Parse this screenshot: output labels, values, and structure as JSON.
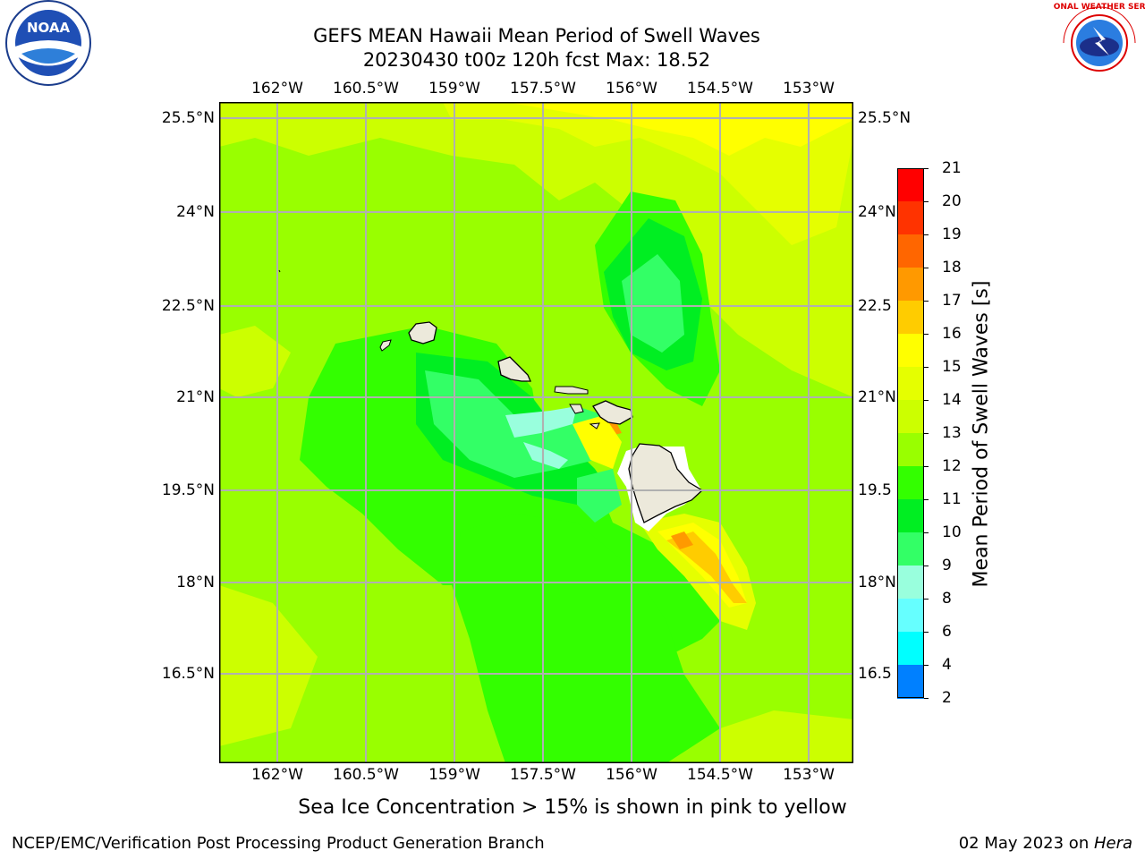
{
  "header": {
    "title_line1": "GEFS MEAN Hawaii Mean Period of Swell Waves",
    "title_line2": "20230430 t00z 120h fcst   Max: 18.52"
  },
  "logos": {
    "noaa_text": "NOAA",
    "nws_text": "NATIONAL WEATHER SERVICE"
  },
  "map": {
    "lon_ticks": [
      "162°W",
      "160.5°W",
      "159°W",
      "157.5°W",
      "156°W",
      "154.5°W",
      "153°W"
    ],
    "lat_ticks": [
      "25.5°N",
      "24°N",
      "22.5°N",
      "21°N",
      "19.5°N",
      "18°N",
      "16.5°N"
    ],
    "lat_ticks_right": [
      "25.5°N",
      "24°N",
      "22.5",
      "21°N",
      "19.5",
      "18°N",
      "16.5"
    ],
    "background_color": "#99ff00",
    "grid_color": "#b0b0b0"
  },
  "colorbar": {
    "title": "Mean Period of Swell Waves [s]",
    "labels": [
      "21",
      "20",
      "19",
      "18",
      "17",
      "16",
      "15",
      "14",
      "13",
      "12",
      "11",
      "10",
      "9",
      "8",
      "6",
      "4",
      "2"
    ],
    "colors": [
      "#ff0000",
      "#ff3300",
      "#ff6600",
      "#ff9900",
      "#ffcc00",
      "#ffff00",
      "#e5ff00",
      "#ccff00",
      "#99ff00",
      "#33ff00",
      "#00ee22",
      "#33ff66",
      "#99ffdd",
      "#66ffff",
      "#00ffff",
      "#0080ff",
      "#0000ff"
    ]
  },
  "caption": "Sea Ice Concentration > 15% is shown in pink to yellow",
  "footer": {
    "left": "NCEP/EMC/Verification Post Processing Product Generation Branch",
    "right_date": "02 May 2023 on ",
    "right_host": "Hera"
  }
}
